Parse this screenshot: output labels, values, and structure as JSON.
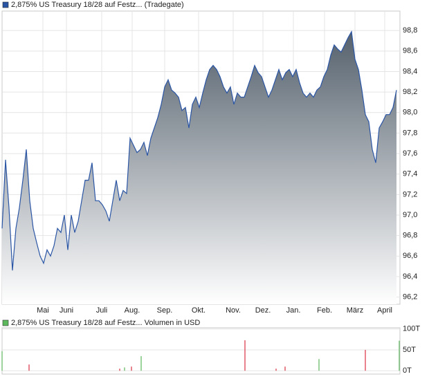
{
  "chart_data": [
    {
      "type": "area",
      "series": [
        {
          "name": "2,875% US Treasury 18/28 auf Festz... (Tradegate)",
          "color": "#2a55a5",
          "fill_top": "#55616d",
          "values": [
            96.87,
            97.54,
            97.07,
            96.46,
            96.87,
            97.07,
            97.34,
            97.64,
            97.14,
            96.87,
            96.73,
            96.6,
            96.53,
            96.66,
            96.6,
            96.7,
            96.87,
            96.83,
            97.0,
            96.66,
            97.0,
            96.83,
            96.94,
            97.14,
            97.34,
            97.34,
            97.51,
            97.14,
            97.14,
            97.1,
            97.04,
            96.94,
            97.14,
            97.34,
            97.14,
            97.24,
            97.21,
            97.75,
            97.68,
            97.61,
            97.64,
            97.71,
            97.58,
            97.75,
            97.85,
            97.95,
            98.08,
            98.25,
            98.32,
            98.22,
            98.19,
            98.15,
            98.02,
            98.05,
            97.85,
            98.08,
            98.15,
            98.05,
            98.19,
            98.32,
            98.42,
            98.46,
            98.42,
            98.35,
            98.25,
            98.19,
            98.25,
            98.08,
            98.19,
            98.15,
            98.15,
            98.25,
            98.35,
            98.46,
            98.39,
            98.35,
            98.25,
            98.15,
            98.22,
            98.32,
            98.42,
            98.32,
            98.39,
            98.42,
            98.35,
            98.42,
            98.29,
            98.19,
            98.15,
            98.19,
            98.15,
            98.22,
            98.25,
            98.35,
            98.42,
            98.56,
            98.66,
            98.62,
            98.59,
            98.66,
            98.73,
            98.79,
            98.52,
            98.42,
            98.22,
            97.98,
            97.91,
            97.64,
            97.51,
            97.85,
            97.91,
            97.98,
            97.98,
            98.05,
            98.22
          ]
        }
      ],
      "xlim": [
        0,
        115
      ],
      "xticks": [
        {
          "value": 11.8,
          "label": "Mai"
        },
        {
          "value": 18.6,
          "label": "Juni"
        },
        {
          "value": 28.8,
          "label": "Juli"
        },
        {
          "value": 37.6,
          "label": "Aug."
        },
        {
          "value": 47,
          "label": "Sep."
        },
        {
          "value": 56.8,
          "label": "Okt."
        },
        {
          "value": 66.8,
          "label": "Nov."
        },
        {
          "value": 75.4,
          "label": "Dez."
        },
        {
          "value": 84.2,
          "label": "Jan."
        },
        {
          "value": 93.2,
          "label": "Feb."
        },
        {
          "value": 102,
          "label": "März"
        },
        {
          "value": 110.6,
          "label": "April"
        }
      ],
      "ylim": [
        96.13,
        98.99
      ],
      "yticks": [
        {
          "value": 96.2,
          "label": "96,2"
        },
        {
          "value": 96.4,
          "label": "96,4"
        },
        {
          "value": 96.6,
          "label": "96,6"
        },
        {
          "value": 96.8,
          "label": "96,8"
        },
        {
          "value": 97.0,
          "label": "97,0"
        },
        {
          "value": 97.2,
          "label": "97,2"
        },
        {
          "value": 97.4,
          "label": "97,4"
        },
        {
          "value": 97.6,
          "label": "97,6"
        },
        {
          "value": 97.8,
          "label": "97,8"
        },
        {
          "value": 98.0,
          "label": "98,0"
        },
        {
          "value": 98.2,
          "label": "98,2"
        },
        {
          "value": 98.4,
          "label": "98,4"
        },
        {
          "value": 98.6,
          "label": "98,6"
        },
        {
          "value": 98.8,
          "label": "98,8"
        }
      ],
      "grid": true
    },
    {
      "type": "bar",
      "series": [
        {
          "name": "2,875% US Treasury 18/28 auf Festz... Volumen in USD",
          "color": "#5cb85c",
          "x": [
            0,
            7.8,
            34,
            35.4,
            37.4,
            40.2,
            70.2,
            79.2,
            81.8,
            91.6,
            105,
            114.8
          ],
          "values": [
            47,
            15,
            5,
            8,
            10,
            35,
            73,
            5,
            10,
            28,
            50,
            72
          ],
          "colors": [
            "#5cb85c",
            "#d9303f",
            "#d9303f",
            "#5cb85c",
            "#d9303f",
            "#5cb85c",
            "#d9303f",
            "#d9303f",
            "#d9303f",
            "#5cb85c",
            "#d9303f",
            "#5cb85c"
          ]
        }
      ],
      "xlim": [
        0,
        115
      ],
      "ylim": [
        -8,
        103
      ],
      "yticks": [
        {
          "value": 0,
          "label": "0T"
        },
        {
          "value": 50,
          "label": "50T"
        },
        {
          "value": 100,
          "label": "100T"
        }
      ],
      "grid": true
    }
  ]
}
